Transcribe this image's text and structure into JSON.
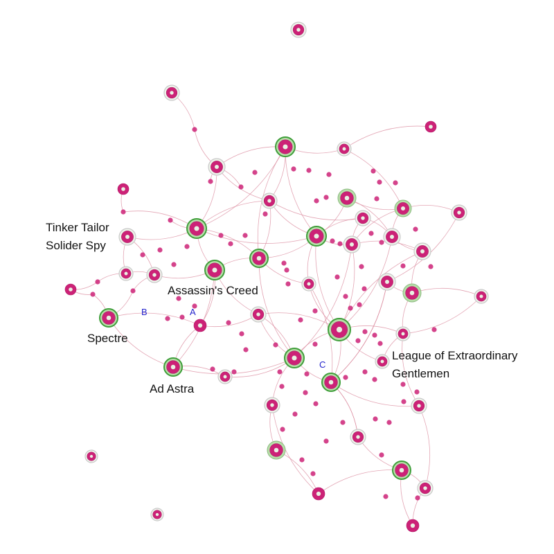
{
  "colors": {
    "edge": "#d9879b",
    "node_fill": "#cc2277",
    "node_fill_dark": "#b01866",
    "ring_green": "#3f9e3a",
    "ring_light": "#b8dfaa",
    "ring_grey": "#c8c8c8",
    "label_text": "#111111",
    "marker_text": "#2222cc"
  },
  "labels": {
    "tinker_line1": "Tinker Tailor",
    "tinker_line2": "Solider Spy",
    "assassins_creed": "Assassin's Creed",
    "spectre": "Spectre",
    "ad_astra": "Ad Astra",
    "league_line1": "League of Extraordinary",
    "league_line2": "Gentlemen"
  },
  "markers": {
    "a": "A",
    "b": "B",
    "c": "C"
  }
}
